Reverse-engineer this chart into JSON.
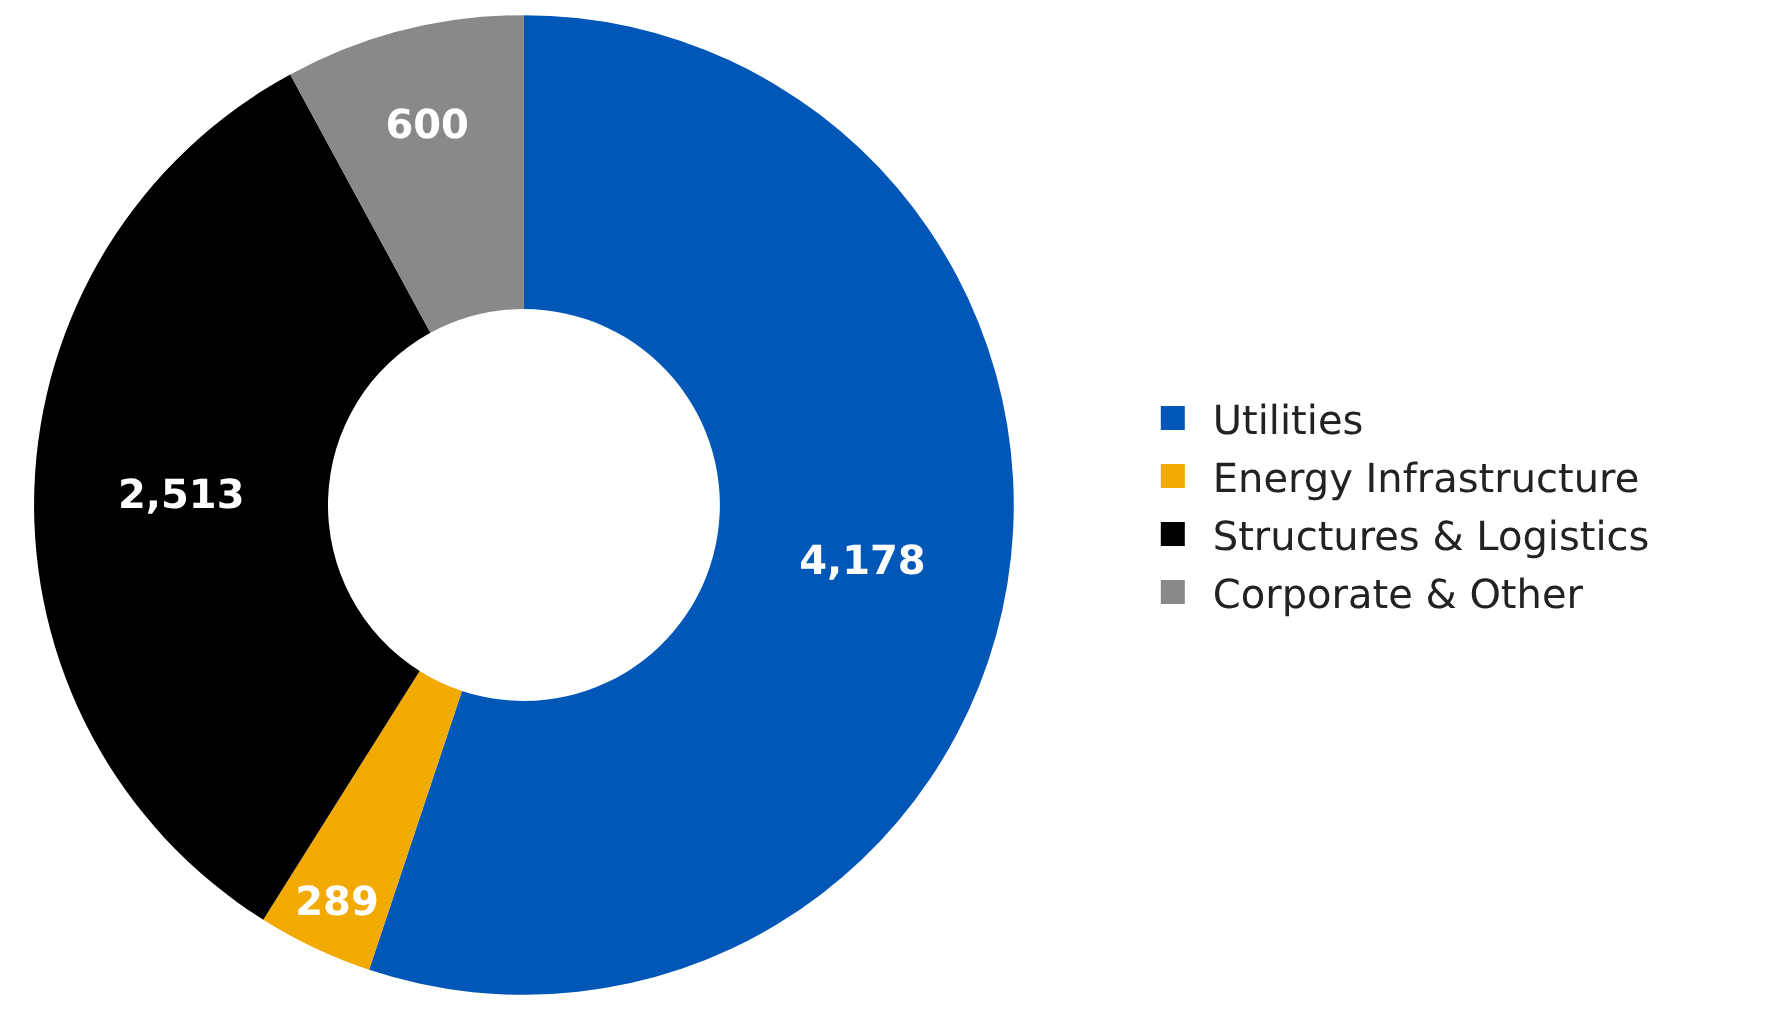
{
  "chart_data": {
    "type": "donut",
    "categories": [
      "Utilities",
      "Energy Infrastructure",
      "Structures & Logistics",
      "Corporate & Other"
    ],
    "values": [
      4178,
      289,
      2513,
      600
    ],
    "colors": [
      "#0057b8",
      "#f2a900",
      "#000000",
      "#898989"
    ],
    "value_labels": [
      "4,178",
      "289",
      "2,513",
      "600"
    ],
    "legend": "right"
  }
}
